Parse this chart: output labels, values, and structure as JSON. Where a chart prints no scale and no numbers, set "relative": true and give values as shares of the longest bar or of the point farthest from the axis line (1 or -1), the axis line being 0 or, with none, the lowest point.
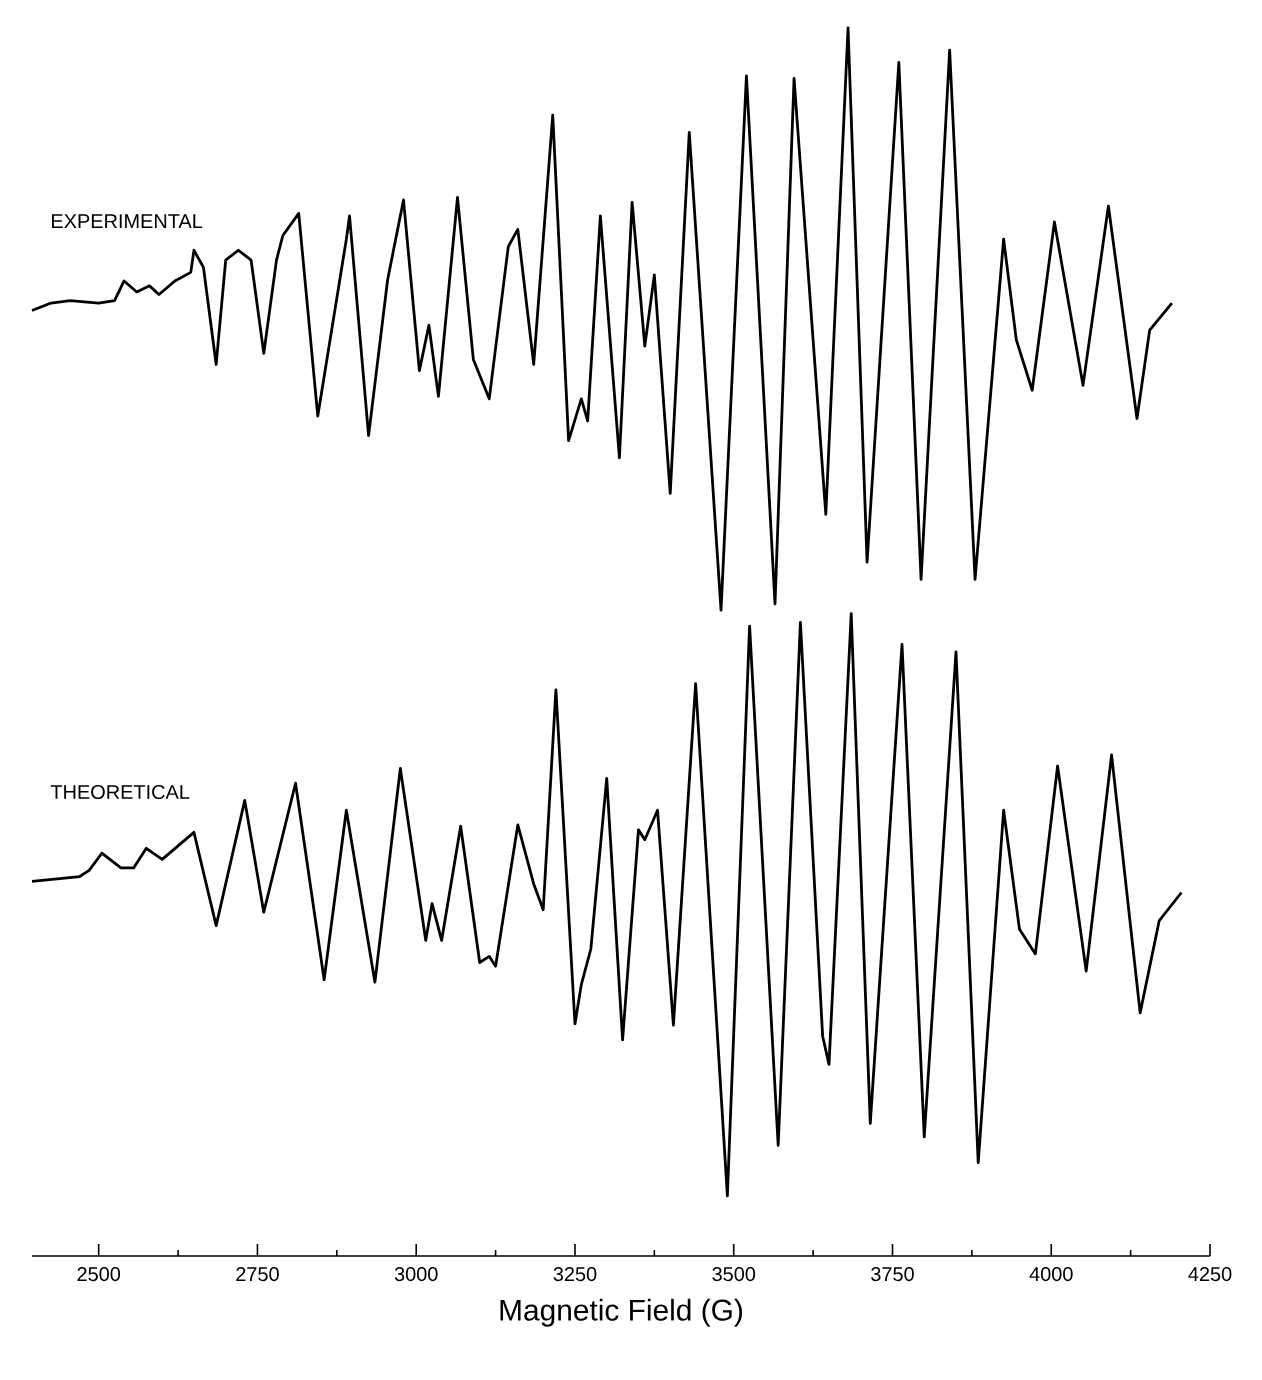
{
  "chart_data": {
    "type": "line",
    "relative": true,
    "tick_labels": "x",
    "xlabel": "Magnetic Field (G)",
    "xlim": [
      2395,
      4250
    ],
    "xticks": [
      2500,
      2750,
      3000,
      3250,
      3500,
      3750,
      4000,
      4250
    ],
    "series": [
      {
        "name": "EXPERIMENTAL",
        "color": "#000000",
        "x": [
          2395,
          2425,
          2455,
          2500,
          2525,
          2540,
          2560,
          2580,
          2595,
          2620,
          2645,
          2650,
          2665,
          2685,
          2700,
          2720,
          2740,
          2760,
          2780,
          2790,
          2815,
          2845,
          2890,
          2895,
          2925,
          2955,
          2980,
          3005,
          3020,
          3035,
          3065,
          3090,
          3115,
          3145,
          3160,
          3185,
          3215,
          3240,
          3260,
          3270,
          3290,
          3320,
          3340,
          3360,
          3375,
          3400,
          3430,
          3480,
          3520,
          3565,
          3595,
          3645,
          3680,
          3710,
          3760,
          3795,
          3840,
          3880,
          3925,
          3945,
          3970,
          4005,
          4050,
          4090,
          4135,
          4155,
          4190
        ],
        "values": [
          0.77,
          0.776,
          0.778,
          0.776,
          0.778,
          0.794,
          0.785,
          0.79,
          0.783,
          0.794,
          0.801,
          0.819,
          0.805,
          0.726,
          0.811,
          0.819,
          0.811,
          0.735,
          0.811,
          0.831,
          0.849,
          0.684,
          0.828,
          0.847,
          0.668,
          0.795,
          0.86,
          0.721,
          0.758,
          0.7,
          0.862,
          0.73,
          0.698,
          0.822,
          0.836,
          0.726,
          0.929,
          0.664,
          0.698,
          0.68,
          0.847,
          0.65,
          0.858,
          0.741,
          0.799,
          0.621,
          0.915,
          0.526,
          0.961,
          0.531,
          0.959,
          0.604,
          1,
          0.565,
          0.972,
          0.551,
          0.982,
          0.551,
          0.828,
          0.746,
          0.705,
          0.842,
          0.709,
          0.855,
          0.682,
          0.754,
          0.776
        ]
      },
      {
        "name": "THEORETICAL",
        "color": "#000000",
        "x": [
          2395,
          2470,
          2485,
          2505,
          2535,
          2555,
          2575,
          2600,
          2650,
          2685,
          2730,
          2760,
          2810,
          2855,
          2890,
          2935,
          2975,
          3015,
          3025,
          3040,
          3070,
          3100,
          3115,
          3125,
          3160,
          3185,
          3200,
          3220,
          3250,
          3260,
          3275,
          3300,
          3325,
          3350,
          3360,
          3380,
          3405,
          3440,
          3490,
          3525,
          3570,
          3605,
          3640,
          3650,
          3685,
          3715,
          3765,
          3800,
          3850,
          3885,
          3925,
          3950,
          3975,
          4010,
          4055,
          4095,
          4140,
          4170,
          4205
        ],
        "values": [
          0.305,
          0.309,
          0.314,
          0.328,
          0.316,
          0.316,
          0.332,
          0.323,
          0.345,
          0.269,
          0.371,
          0.28,
          0.385,
          0.225,
          0.363,
          0.223,
          0.397,
          0.257,
          0.287,
          0.257,
          0.35,
          0.239,
          0.244,
          0.236,
          0.351,
          0.303,
          0.282,
          0.461,
          0.189,
          0.221,
          0.25,
          0.389,
          0.176,
          0.347,
          0.339,
          0.363,
          0.188,
          0.466,
          0.049,
          0.513,
          0.09,
          0.516,
          0.179,
          0.156,
          0.523,
          0.108,
          0.498,
          0.097,
          0.492,
          0.076,
          0.363,
          0.266,
          0.246,
          0.399,
          0.232,
          0.408,
          0.198,
          0.273,
          0.296
        ]
      }
    ]
  }
}
